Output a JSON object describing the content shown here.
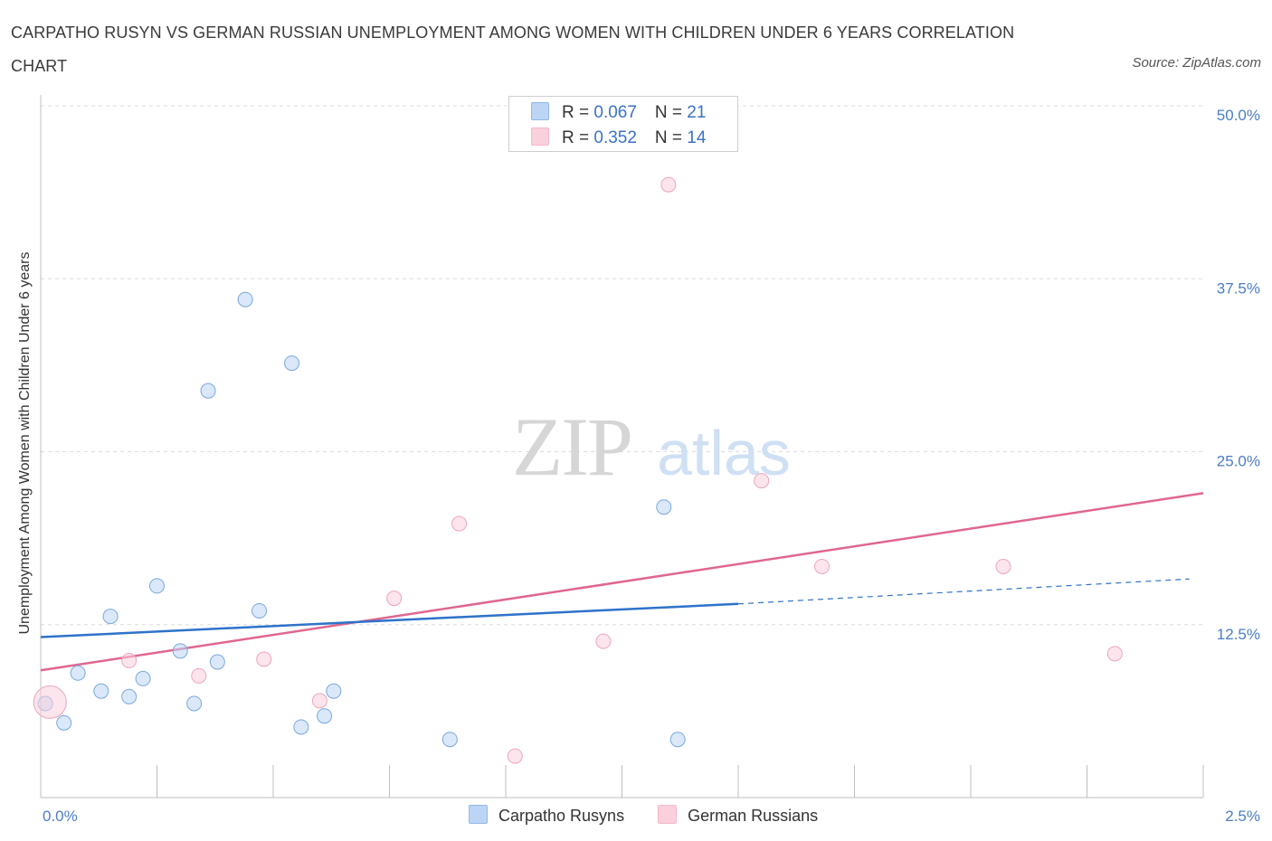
{
  "title": "CARPATHO RUSYN VS GERMAN RUSSIAN UNEMPLOYMENT AMONG WOMEN WITH CHILDREN UNDER 6 YEARS CORRELATION CHART",
  "source": "Source: ZipAtlas.com",
  "watermark": {
    "zip": "ZIP",
    "atlas": "atlas"
  },
  "legend": {
    "rows": [
      {
        "r_label": "R = ",
        "r_value": "0.067",
        "n_label": "N = ",
        "n_value": "21"
      },
      {
        "r_label": "R = ",
        "r_value": "0.352",
        "n_label": "N = ",
        "n_value": "14"
      }
    ]
  },
  "chart_data": {
    "type": "scatter",
    "title": "CARPATHO RUSYN VS GERMAN RUSSIAN UNEMPLOYMENT AMONG WOMEN WITH CHILDREN UNDER 6 YEARS CORRELATION CHART",
    "xlabel": "",
    "ylabel": "Unemployment Among Women with Children Under 6 years",
    "xlim": [
      0,
      2.5
    ],
    "ylim": [
      0,
      50
    ],
    "x_tick_labels": [
      "0.0%",
      "2.5%"
    ],
    "y_ticks": [
      12.5,
      25.0,
      37.5,
      50.0
    ],
    "y_tick_labels": [
      "12.5%",
      "25.0%",
      "37.5%",
      "50.0%"
    ],
    "grid": "horizontal dashed",
    "legend_placement": "top-center",
    "series": [
      {
        "name": "Carpatho Rusyns",
        "color": "#8fb8e8",
        "line_color": "#2f72c9",
        "R": 0.067,
        "N": 21,
        "trend": {
          "x0": 0.0,
          "y0": 11.6,
          "x1": 1.5,
          "y1": 14.0,
          "x_dash_end": 2.47,
          "y_dash_end": 15.8
        },
        "points": [
          {
            "x": 0.01,
            "y": 6.8
          },
          {
            "x": 0.05,
            "y": 5.4
          },
          {
            "x": 0.08,
            "y": 9.0
          },
          {
            "x": 0.13,
            "y": 7.7
          },
          {
            "x": 0.15,
            "y": 13.1
          },
          {
            "x": 0.19,
            "y": 7.3
          },
          {
            "x": 0.22,
            "y": 8.6
          },
          {
            "x": 0.25,
            "y": 15.3
          },
          {
            "x": 0.3,
            "y": 10.6
          },
          {
            "x": 0.33,
            "y": 6.8
          },
          {
            "x": 0.36,
            "y": 29.4
          },
          {
            "x": 0.38,
            "y": 9.8
          },
          {
            "x": 0.44,
            "y": 36.0
          },
          {
            "x": 0.47,
            "y": 13.5
          },
          {
            "x": 0.54,
            "y": 31.4
          },
          {
            "x": 0.56,
            "y": 5.1
          },
          {
            "x": 0.61,
            "y": 5.9
          },
          {
            "x": 0.63,
            "y": 7.7
          },
          {
            "x": 0.88,
            "y": 4.2
          },
          {
            "x": 1.34,
            "y": 21.0
          },
          {
            "x": 1.37,
            "y": 4.2
          }
        ]
      },
      {
        "name": "German Russians",
        "color": "#f5b8cb",
        "line_color": "#e0668f",
        "R": 0.352,
        "N": 14,
        "trend": {
          "x0": 0.0,
          "y0": 9.2,
          "x1": 2.5,
          "y1": 22.0
        },
        "points": [
          {
            "x": 0.02,
            "y": 6.9,
            "big": true
          },
          {
            "x": 0.19,
            "y": 9.9
          },
          {
            "x": 0.34,
            "y": 8.8
          },
          {
            "x": 0.48,
            "y": 10.0
          },
          {
            "x": 0.6,
            "y": 7.0
          },
          {
            "x": 0.76,
            "y": 14.4
          },
          {
            "x": 0.9,
            "y": 19.8
          },
          {
            "x": 1.02,
            "y": 3.0
          },
          {
            "x": 1.21,
            "y": 11.3
          },
          {
            "x": 1.35,
            "y": 44.3
          },
          {
            "x": 1.55,
            "y": 22.9
          },
          {
            "x": 1.68,
            "y": 16.7
          },
          {
            "x": 2.07,
            "y": 16.7
          },
          {
            "x": 2.31,
            "y": 10.4
          }
        ]
      }
    ]
  }
}
